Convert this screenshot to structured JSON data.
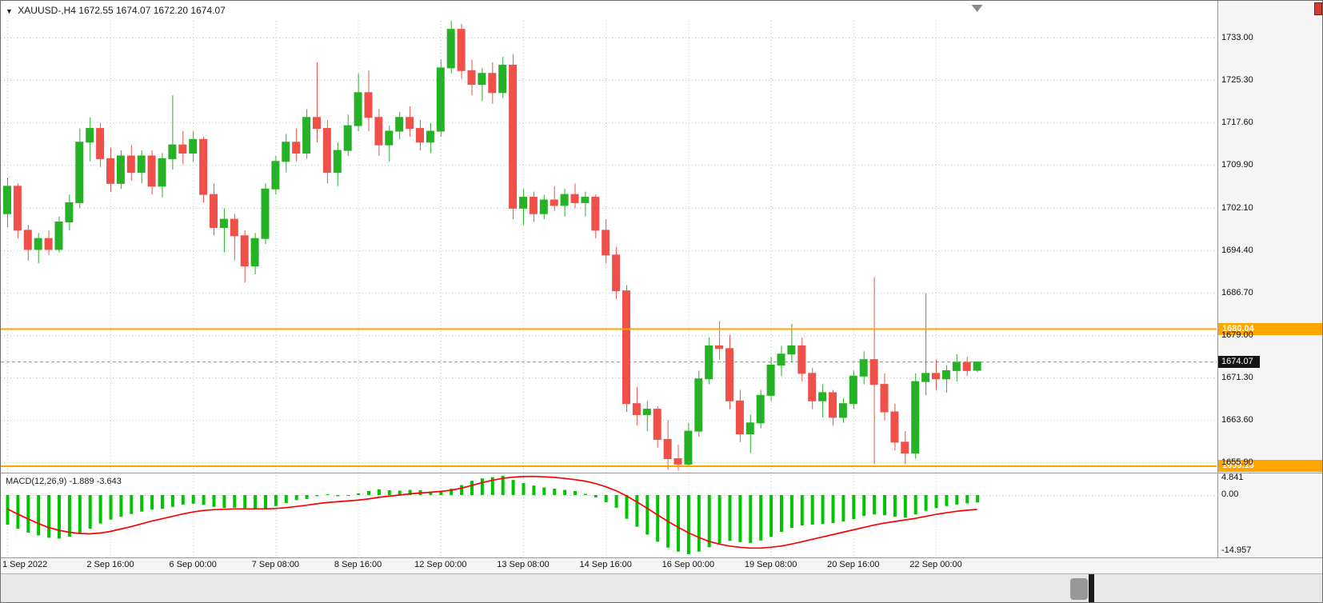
{
  "window": {
    "title": {
      "marker": "▼",
      "symbol": "XAUUSD-,H4",
      "ohlc": "1672.55 1674.07 1672.20 1674.07"
    }
  },
  "colors": {
    "bull": "#26b226",
    "bear": "#f0504a",
    "horizontal_line": "#ffa500",
    "macd_histogram": "#00c400",
    "macd_signal": "#ff0000",
    "current_price_bg": "#141414",
    "grid": "#c4c4c4",
    "axis_bg": "#f5f5f5"
  },
  "chart_data": {
    "type": "candlestick",
    "symbol": "XAUUSD-",
    "timeframe": "H4",
    "price_pane": {
      "y_ticks": [
        "1733.00",
        "1725.30",
        "1717.60",
        "1709.90",
        "1702.10",
        "1694.40",
        "1686.70",
        "1679.00",
        "1671.30",
        "1663.60",
        "1655.90"
      ],
      "ylim": [
        1654.25,
        1736.05
      ],
      "hlines": [
        {
          "price": 1680.04,
          "label": "1680.04"
        },
        {
          "price": 1655.13,
          "label": "1655.13"
        }
      ],
      "current_price": {
        "value": 1674.07,
        "label": "1674.07"
      },
      "candles": [
        [
          1701.0,
          1707.5,
          1698.5,
          1706.0
        ],
        [
          1706.0,
          1706.5,
          1696.5,
          1698.0
        ],
        [
          1698.0,
          1699.0,
          1692.5,
          1694.5
        ],
        [
          1694.5,
          1697.5,
          1692.0,
          1696.5
        ],
        [
          1696.5,
          1698.0,
          1693.5,
          1694.5
        ],
        [
          1694.5,
          1700.5,
          1694.0,
          1699.5
        ],
        [
          1699.5,
          1704.5,
          1698.0,
          1703.0
        ],
        [
          1703.0,
          1716.5,
          1702.0,
          1714.0
        ],
        [
          1714.0,
          1718.5,
          1710.5,
          1716.5
        ],
        [
          1716.5,
          1717.5,
          1709.5,
          1711.0
        ],
        [
          1711.0,
          1713.0,
          1705.0,
          1706.5
        ],
        [
          1706.5,
          1712.5,
          1705.5,
          1711.5
        ],
        [
          1711.5,
          1713.5,
          1707.0,
          1708.5
        ],
        [
          1708.5,
          1712.5,
          1706.5,
          1711.5
        ],
        [
          1711.5,
          1712.5,
          1704.5,
          1706.0
        ],
        [
          1706.0,
          1712.0,
          1704.0,
          1711.0
        ],
        [
          1711.0,
          1722.5,
          1709.0,
          1713.5
        ],
        [
          1713.5,
          1716.0,
          1710.0,
          1712.0
        ],
        [
          1712.0,
          1716.0,
          1710.5,
          1714.5
        ],
        [
          1714.5,
          1715.0,
          1703.0,
          1704.5
        ],
        [
          1704.5,
          1706.5,
          1697.0,
          1698.5
        ],
        [
          1698.5,
          1702.0,
          1694.0,
          1700.0
        ],
        [
          1700.0,
          1701.0,
          1692.5,
          1697.0
        ],
        [
          1697.0,
          1698.0,
          1688.5,
          1691.5
        ],
        [
          1691.5,
          1697.5,
          1690.0,
          1696.5
        ],
        [
          1696.5,
          1706.5,
          1695.5,
          1705.5
        ],
        [
          1705.5,
          1711.5,
          1704.5,
          1710.5
        ],
        [
          1710.5,
          1715.5,
          1708.5,
          1714.0
        ],
        [
          1714.0,
          1716.5,
          1710.5,
          1712.0
        ],
        [
          1712.0,
          1720.0,
          1711.0,
          1718.5
        ],
        [
          1718.5,
          1728.5,
          1714.0,
          1716.5
        ],
        [
          1716.5,
          1718.0,
          1706.5,
          1708.5
        ],
        [
          1708.5,
          1714.0,
          1706.0,
          1712.5
        ],
        [
          1712.5,
          1719.0,
          1711.5,
          1717.0
        ],
        [
          1717.0,
          1726.5,
          1716.0,
          1723.0
        ],
        [
          1723.0,
          1727.0,
          1716.0,
          1718.5
        ],
        [
          1718.5,
          1720.0,
          1711.5,
          1713.5
        ],
        [
          1713.5,
          1717.0,
          1710.5,
          1716.0
        ],
        [
          1716.0,
          1719.5,
          1714.5,
          1718.5
        ],
        [
          1718.5,
          1720.5,
          1715.0,
          1716.5
        ],
        [
          1716.5,
          1718.0,
          1712.5,
          1714.0
        ],
        [
          1714.0,
          1717.5,
          1712.0,
          1716.0
        ],
        [
          1716.0,
          1729.0,
          1715.0,
          1727.5
        ],
        [
          1727.5,
          1736.2,
          1726.5,
          1734.5
        ],
        [
          1734.5,
          1735.5,
          1725.5,
          1727.0
        ],
        [
          1727.0,
          1729.0,
          1722.5,
          1724.5
        ],
        [
          1724.5,
          1727.5,
          1721.5,
          1726.5
        ],
        [
          1726.5,
          1728.5,
          1721.0,
          1723.0
        ],
        [
          1723.0,
          1729.5,
          1722.0,
          1728.0
        ],
        [
          1728.0,
          1730.0,
          1700.0,
          1702.0
        ],
        [
          1702.0,
          1705.5,
          1699.0,
          1704.0
        ],
        [
          1704.0,
          1705.0,
          1699.5,
          1701.0
        ],
        [
          1701.0,
          1704.5,
          1700.0,
          1703.5
        ],
        [
          1703.5,
          1706.0,
          1701.5,
          1702.5
        ],
        [
          1702.5,
          1705.5,
          1700.5,
          1704.5
        ],
        [
          1704.5,
          1706.5,
          1702.0,
          1703.0
        ],
        [
          1703.0,
          1705.0,
          1700.5,
          1704.0
        ],
        [
          1704.0,
          1704.5,
          1696.5,
          1698.0
        ],
        [
          1698.0,
          1700.0,
          1692.0,
          1693.5
        ],
        [
          1693.5,
          1695.0,
          1685.5,
          1687.0
        ],
        [
          1687.0,
          1688.0,
          1665.0,
          1666.5
        ],
        [
          1666.5,
          1669.5,
          1662.5,
          1664.5
        ],
        [
          1664.5,
          1667.0,
          1661.5,
          1665.5
        ],
        [
          1665.5,
          1666.0,
          1658.5,
          1660.0
        ],
        [
          1660.0,
          1663.5,
          1654.5,
          1656.5
        ],
        [
          1656.5,
          1659.0,
          1654.0,
          1655.5
        ],
        [
          1655.5,
          1663.0,
          1655.0,
          1661.5
        ],
        [
          1661.5,
          1672.5,
          1660.5,
          1671.0
        ],
        [
          1671.0,
          1678.5,
          1670.0,
          1677.0
        ],
        [
          1677.0,
          1681.5,
          1674.5,
          1676.5
        ],
        [
          1676.5,
          1679.0,
          1665.5,
          1667.0
        ],
        [
          1667.0,
          1669.0,
          1659.5,
          1661.0
        ],
        [
          1661.0,
          1664.5,
          1657.5,
          1663.0
        ],
        [
          1663.0,
          1669.0,
          1662.0,
          1668.0
        ],
        [
          1668.0,
          1675.0,
          1667.0,
          1673.5
        ],
        [
          1673.5,
          1677.0,
          1671.5,
          1675.5
        ],
        [
          1675.5,
          1681.0,
          1674.0,
          1677.0
        ],
        [
          1677.0,
          1678.5,
          1670.5,
          1672.0
        ],
        [
          1672.0,
          1673.0,
          1665.5,
          1667.0
        ],
        [
          1667.0,
          1670.0,
          1664.0,
          1668.5
        ],
        [
          1668.5,
          1669.0,
          1662.5,
          1664.0
        ],
        [
          1664.0,
          1667.5,
          1663.0,
          1666.5
        ],
        [
          1666.5,
          1672.5,
          1665.5,
          1671.5
        ],
        [
          1671.5,
          1676.0,
          1670.0,
          1674.5
        ],
        [
          1674.5,
          1689.5,
          1655.5,
          1670.0
        ],
        [
          1670.0,
          1672.0,
          1663.5,
          1665.0
        ],
        [
          1665.0,
          1666.5,
          1658.0,
          1659.5
        ],
        [
          1659.5,
          1661.5,
          1655.5,
          1657.5
        ],
        [
          1657.5,
          1672.0,
          1656.5,
          1670.5
        ],
        [
          1670.5,
          1686.5,
          1668.0,
          1672.0
        ],
        [
          1672.0,
          1674.5,
          1669.0,
          1671.0
        ],
        [
          1671.0,
          1673.5,
          1668.5,
          1672.5
        ],
        [
          1672.5,
          1675.5,
          1670.5,
          1674.0
        ],
        [
          1674.0,
          1675.0,
          1671.5,
          1672.5
        ],
        [
          1672.55,
          1674.07,
          1672.2,
          1674.07
        ]
      ]
    },
    "x_axis": {
      "ticks": [
        {
          "label": "1 Sep 2022",
          "index": 0
        },
        {
          "label": "2 Sep 16:00",
          "index": 10
        },
        {
          "label": "6 Sep 00:00",
          "index": 18
        },
        {
          "label": "7 Sep 08:00",
          "index": 26
        },
        {
          "label": "8 Sep 16:00",
          "index": 34
        },
        {
          "label": "12 Sep 00:00",
          "index": 42
        },
        {
          "label": "13 Sep 08:00",
          "index": 50
        },
        {
          "label": "14 Sep 16:00",
          "index": 58
        },
        {
          "label": "16 Sep 00:00",
          "index": 66
        },
        {
          "label": "19 Sep 08:00",
          "index": 74
        },
        {
          "label": "20 Sep 16:00",
          "index": 82
        },
        {
          "label": "22 Sep 00:00",
          "index": 90
        }
      ]
    },
    "macd_pane": {
      "label": "MACD(12,26,9) -1.889 -3.643",
      "axis": {
        "max": "4.841",
        "zero": "0.00",
        "min": "-14.957"
      },
      "ylim": [
        -14.957,
        4.841
      ],
      "histogram": [
        -7.5,
        -8.5,
        -9.5,
        -10.2,
        -10.8,
        -11.0,
        -10.5,
        -9.8,
        -8.5,
        -7.2,
        -6.2,
        -5.5,
        -4.8,
        -4.2,
        -3.7,
        -3.5,
        -3.0,
        -2.4,
        -2.2,
        -2.5,
        -3.0,
        -3.3,
        -3.2,
        -3.3,
        -3.6,
        -3.4,
        -2.8,
        -2.0,
        -1.3,
        -1.0,
        -0.3,
        0.2,
        -0.3,
        -0.2,
        0.4,
        1.0,
        1.4,
        1.2,
        1.1,
        1.3,
        1.2,
        0.9,
        1.1,
        1.6,
        2.5,
        3.6,
        4.2,
        4.5,
        4.841,
        3.8,
        3.0,
        2.4,
        1.9,
        1.6,
        1.3,
        1.0,
        0.3,
        -0.6,
        -1.8,
        -3.2,
        -6.0,
        -8.0,
        -10.0,
        -11.8,
        -13.3,
        -14.3,
        -14.957,
        -14.3,
        -13.2,
        -12.2,
        -11.6,
        -11.9,
        -12.1,
        -11.5,
        -10.5,
        -9.3,
        -8.3,
        -7.7,
        -7.5,
        -7.3,
        -7.1,
        -6.7,
        -6.1,
        -5.3,
        -4.9,
        -5.1,
        -5.5,
        -5.7,
        -4.9,
        -4.0,
        -3.3,
        -2.8,
        -2.4,
        -2.1,
        -1.889
      ],
      "signal": [
        -3.5,
        -4.8,
        -6.0,
        -7.2,
        -8.2,
        -8.9,
        -9.4,
        -9.7,
        -9.8,
        -9.6,
        -9.2,
        -8.6,
        -8.0,
        -7.3,
        -6.6,
        -6.0,
        -5.4,
        -4.8,
        -4.3,
        -3.9,
        -3.7,
        -3.6,
        -3.5,
        -3.5,
        -3.5,
        -3.5,
        -3.4,
        -3.2,
        -2.9,
        -2.6,
        -2.2,
        -1.9,
        -1.7,
        -1.5,
        -1.3,
        -1.0,
        -0.6,
        -0.3,
        0.0,
        0.3,
        0.5,
        0.7,
        0.9,
        1.2,
        1.7,
        2.4,
        3.1,
        3.7,
        4.2,
        4.5,
        4.65,
        4.7,
        4.6,
        4.45,
        4.2,
        3.9,
        3.5,
        2.9,
        2.1,
        1.1,
        -0.2,
        -1.7,
        -3.3,
        -5.0,
        -6.6,
        -8.1,
        -9.5,
        -10.7,
        -11.7,
        -12.4,
        -12.9,
        -13.2,
        -13.4,
        -13.4,
        -13.2,
        -12.9,
        -12.4,
        -11.8,
        -11.2,
        -10.6,
        -10.0,
        -9.4,
        -8.8,
        -8.2,
        -7.6,
        -7.1,
        -6.7,
        -6.3,
        -5.9,
        -5.4,
        -4.9,
        -4.5,
        -4.1,
        -3.85,
        -3.643
      ]
    }
  }
}
